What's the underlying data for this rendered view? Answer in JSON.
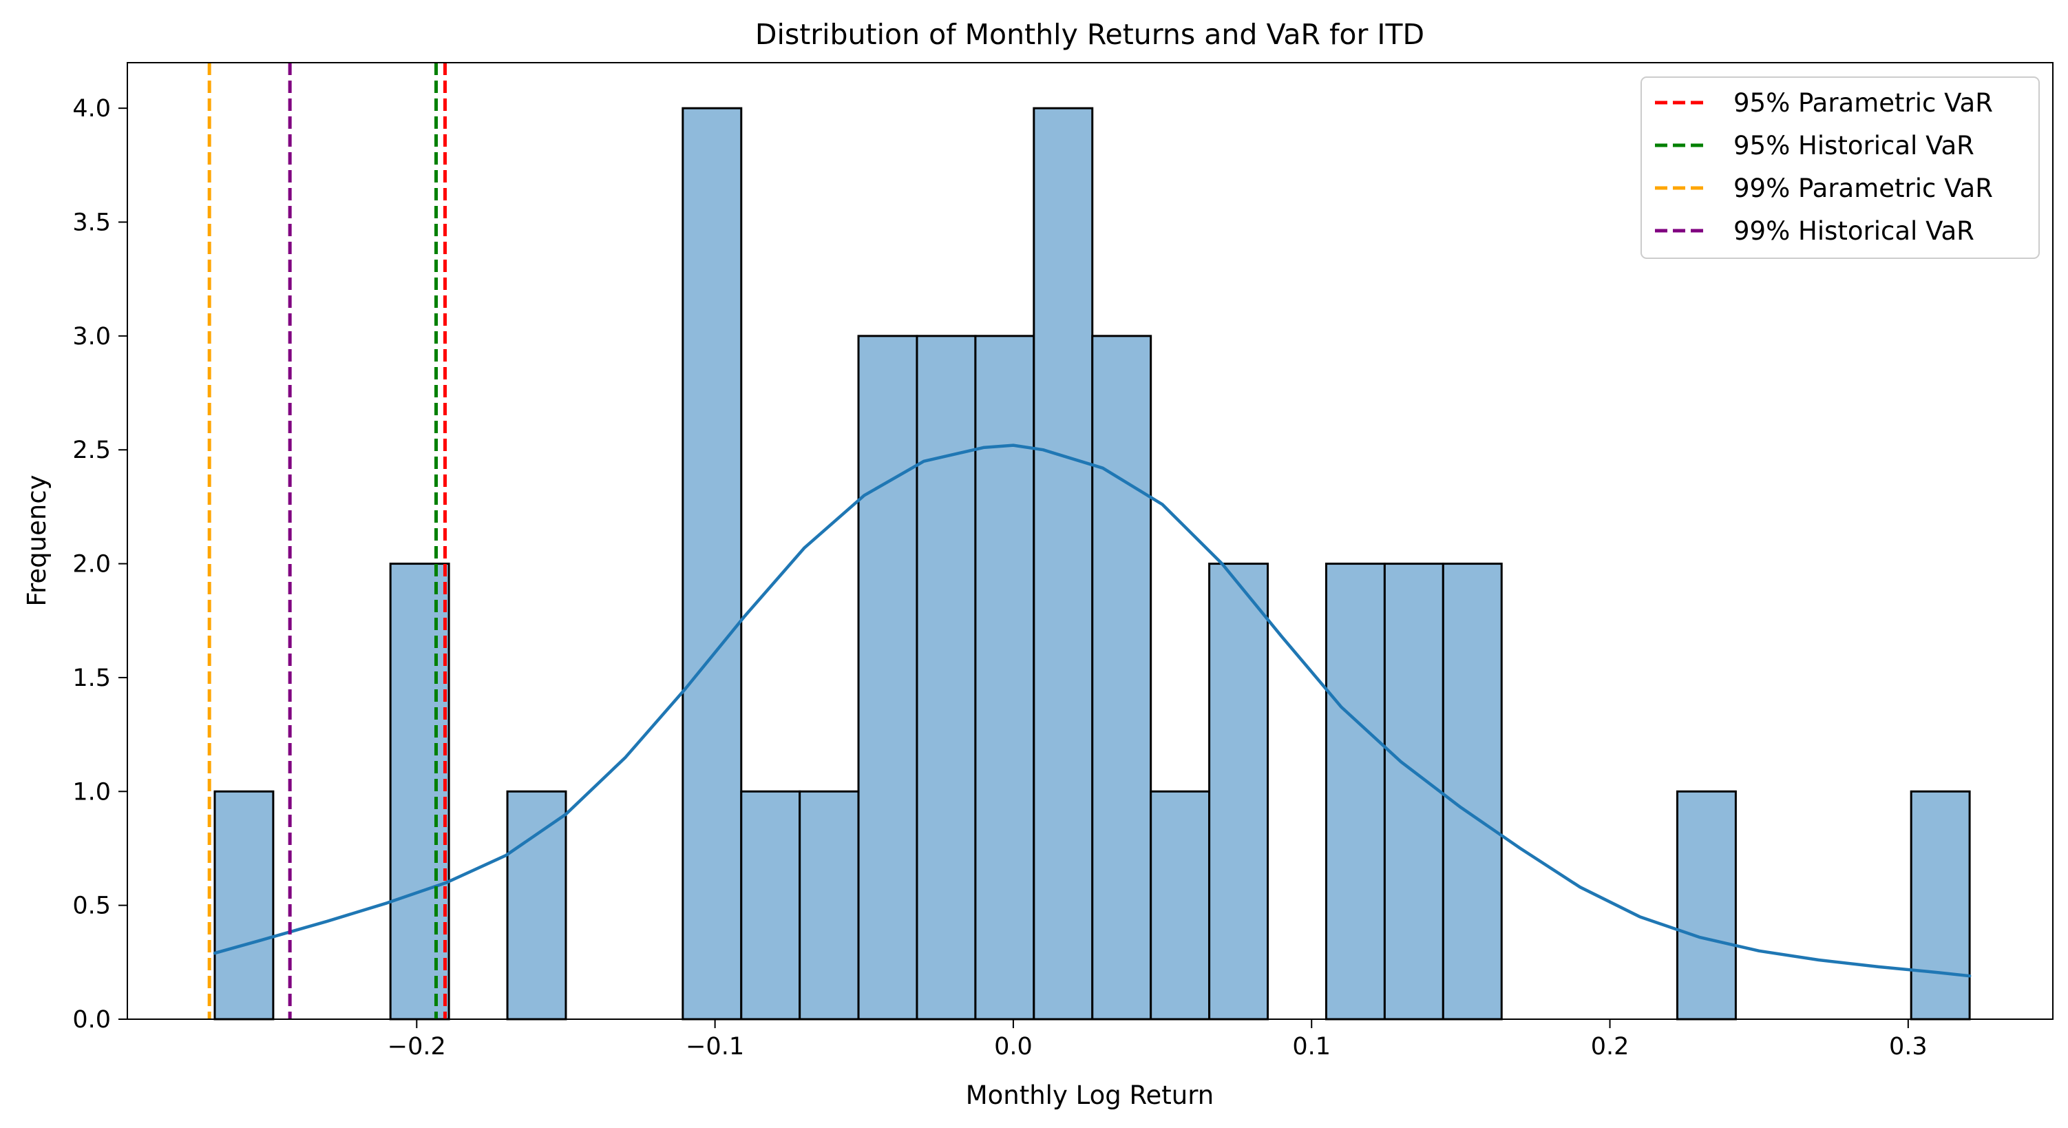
{
  "chart_data": {
    "type": "bar",
    "title": "Distribution of Monthly Returns and VaR for ITD",
    "xlabel": "Monthly Log Return",
    "ylabel": "Frequency",
    "xlim": [
      -0.297,
      0.3485
    ],
    "ylim": [
      0,
      4.2
    ],
    "x_ticks": [
      -0.2,
      -0.1,
      0.0,
      0.1,
      0.2,
      0.3
    ],
    "x_tick_labels": [
      "−0.2",
      "−0.1",
      "0.0",
      "0.1",
      "0.2",
      "0.3"
    ],
    "y_ticks": [
      0.0,
      0.5,
      1.0,
      1.5,
      2.0,
      2.5,
      3.0,
      3.5,
      4.0
    ],
    "y_tick_labels": [
      "0.0",
      "0.5",
      "1.0",
      "1.5",
      "2.0",
      "2.5",
      "3.0",
      "3.5",
      "4.0"
    ],
    "grid": false,
    "legend_position": "top-right",
    "bar_color": "#8fbadb",
    "bar_edge_color": "#000000",
    "bins": [
      {
        "x0": -0.2677,
        "x1": -0.2481,
        "count": 1
      },
      {
        "x0": -0.2088,
        "x1": -0.1892,
        "count": 2
      },
      {
        "x0": -0.1696,
        "x1": -0.15,
        "count": 1
      },
      {
        "x0": -0.1108,
        "x1": -0.0912,
        "count": 4
      },
      {
        "x0": -0.0912,
        "x1": -0.0716,
        "count": 1
      },
      {
        "x0": -0.0716,
        "x1": -0.0519,
        "count": 1
      },
      {
        "x0": -0.0519,
        "x1": -0.0323,
        "count": 3
      },
      {
        "x0": -0.0323,
        "x1": -0.0127,
        "count": 3
      },
      {
        "x0": -0.0127,
        "x1": 0.0069,
        "count": 3
      },
      {
        "x0": 0.0069,
        "x1": 0.0265,
        "count": 4
      },
      {
        "x0": 0.0265,
        "x1": 0.0461,
        "count": 3
      },
      {
        "x0": 0.0461,
        "x1": 0.0657,
        "count": 1
      },
      {
        "x0": 0.0657,
        "x1": 0.0853,
        "count": 2
      },
      {
        "x0": 0.1049,
        "x1": 0.1245,
        "count": 2
      },
      {
        "x0": 0.1245,
        "x1": 0.1441,
        "count": 2
      },
      {
        "x0": 0.1441,
        "x1": 0.1637,
        "count": 2
      },
      {
        "x0": 0.2226,
        "x1": 0.2422,
        "count": 1
      },
      {
        "x0": 0.301,
        "x1": 0.3206,
        "count": 1
      }
    ],
    "kde": {
      "color": "#1f77b4",
      "points": [
        [
          -0.2677,
          0.29
        ],
        [
          -0.25,
          0.355
        ],
        [
          -0.23,
          0.43
        ],
        [
          -0.21,
          0.51
        ],
        [
          -0.19,
          0.6
        ],
        [
          -0.17,
          0.72
        ],
        [
          -0.15,
          0.9
        ],
        [
          -0.13,
          1.15
        ],
        [
          -0.11,
          1.45
        ],
        [
          -0.09,
          1.77
        ],
        [
          -0.07,
          2.07
        ],
        [
          -0.05,
          2.3
        ],
        [
          -0.03,
          2.45
        ],
        [
          -0.01,
          2.51
        ],
        [
          0.0,
          2.52
        ],
        [
          0.01,
          2.5
        ],
        [
          0.03,
          2.42
        ],
        [
          0.05,
          2.26
        ],
        [
          0.07,
          2.0
        ],
        [
          0.09,
          1.68
        ],
        [
          0.11,
          1.37
        ],
        [
          0.13,
          1.13
        ],
        [
          0.15,
          0.93
        ],
        [
          0.17,
          0.75
        ],
        [
          0.19,
          0.58
        ],
        [
          0.21,
          0.45
        ],
        [
          0.23,
          0.36
        ],
        [
          0.25,
          0.3
        ],
        [
          0.27,
          0.26
        ],
        [
          0.29,
          0.23
        ],
        [
          0.31,
          0.205
        ],
        [
          0.3206,
          0.19
        ]
      ]
    },
    "series": [
      {
        "name": "95% Parametric VaR",
        "value": -0.1905,
        "color": "#ff0000"
      },
      {
        "name": "95% Historical VaR",
        "value": -0.1935,
        "color": "#008000"
      },
      {
        "name": "99% Parametric VaR",
        "value": -0.2695,
        "color": "#ffa500"
      },
      {
        "name": "99% Historical VaR",
        "value": -0.2425,
        "color": "#800080"
      }
    ]
  }
}
